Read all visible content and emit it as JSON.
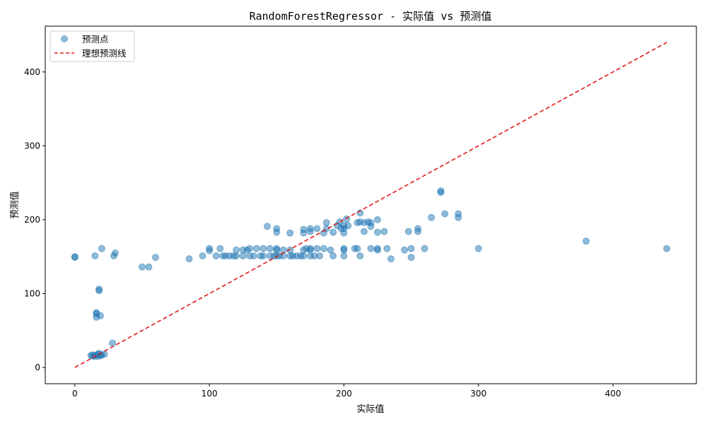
{
  "chart_data": {
    "type": "scatter",
    "title": "RandomForestRegressor - 实际值 vs 预测值",
    "xlabel": "实际值",
    "ylabel": "预测值",
    "xlim": [
      -22,
      462
    ],
    "ylim": [
      -22,
      462
    ],
    "xticks": [
      0,
      100,
      200,
      300,
      400
    ],
    "yticks": [
      0,
      100,
      200,
      300,
      400
    ],
    "grid": false,
    "legend_position": "top-left",
    "colors": {
      "points": "#1f77b4",
      "ideal_line": "#e41a1c"
    },
    "series": [
      {
        "name": "预测点",
        "kind": "scatter",
        "points": [
          [
            0,
            149
          ],
          [
            0,
            150
          ],
          [
            12,
            16
          ],
          [
            13,
            17
          ],
          [
            14,
            15
          ],
          [
            15,
            16
          ],
          [
            15,
            151
          ],
          [
            16,
            74
          ],
          [
            16,
            73
          ],
          [
            16,
            68
          ],
          [
            17,
            15
          ],
          [
            17,
            18
          ],
          [
            18,
            19
          ],
          [
            18,
            106
          ],
          [
            18,
            104
          ],
          [
            19,
            16
          ],
          [
            19,
            70
          ],
          [
            20,
            17
          ],
          [
            20,
            161
          ],
          [
            22,
            18
          ],
          [
            28,
            33
          ],
          [
            29,
            151
          ],
          [
            30,
            155
          ],
          [
            50,
            136
          ],
          [
            55,
            136
          ],
          [
            60,
            149
          ],
          [
            85,
            147
          ],
          [
            95,
            151
          ],
          [
            100,
            158
          ],
          [
            100,
            161
          ],
          [
            105,
            151
          ],
          [
            108,
            161
          ],
          [
            110,
            151
          ],
          [
            112,
            151
          ],
          [
            115,
            151
          ],
          [
            118,
            151
          ],
          [
            120,
            151
          ],
          [
            120,
            159
          ],
          [
            125,
            151
          ],
          [
            125,
            159
          ],
          [
            128,
            159
          ],
          [
            130,
            151
          ],
          [
            130,
            161
          ],
          [
            133,
            151
          ],
          [
            135,
            161
          ],
          [
            138,
            151
          ],
          [
            140,
            151
          ],
          [
            140,
            161
          ],
          [
            143,
            191
          ],
          [
            145,
            151
          ],
          [
            145,
            161
          ],
          [
            148,
            151
          ],
          [
            150,
            151
          ],
          [
            150,
            159
          ],
          [
            150,
            161
          ],
          [
            150,
            183
          ],
          [
            150,
            188
          ],
          [
            152,
            151
          ],
          [
            155,
            151
          ],
          [
            155,
            159
          ],
          [
            160,
            151
          ],
          [
            160,
            159
          ],
          [
            160,
            182
          ],
          [
            162,
            151
          ],
          [
            165,
            151
          ],
          [
            168,
            151
          ],
          [
            170,
            151
          ],
          [
            170,
            159
          ],
          [
            170,
            182
          ],
          [
            170,
            187
          ],
          [
            172,
            161
          ],
          [
            175,
            151
          ],
          [
            175,
            159
          ],
          [
            175,
            161
          ],
          [
            175,
            184
          ],
          [
            175,
            188
          ],
          [
            178,
            151
          ],
          [
            180,
            161
          ],
          [
            180,
            188
          ],
          [
            182,
            151
          ],
          [
            185,
            161
          ],
          [
            185,
            182
          ],
          [
            187,
            188
          ],
          [
            187,
            196
          ],
          [
            190,
            159
          ],
          [
            192,
            151
          ],
          [
            192,
            183
          ],
          [
            195,
            192
          ],
          [
            197,
            197
          ],
          [
            198,
            188
          ],
          [
            200,
            151
          ],
          [
            200,
            159
          ],
          [
            200,
            161
          ],
          [
            200,
            182
          ],
          [
            200,
            188
          ],
          [
            200,
            192
          ],
          [
            202,
            201
          ],
          [
            203,
            192
          ],
          [
            208,
            161
          ],
          [
            210,
            161
          ],
          [
            210,
            196
          ],
          [
            212,
            151
          ],
          [
            212,
            197
          ],
          [
            212,
            209
          ],
          [
            215,
            184
          ],
          [
            215,
            196
          ],
          [
            218,
            197
          ],
          [
            220,
            161
          ],
          [
            220,
            191
          ],
          [
            220,
            196
          ],
          [
            225,
            159
          ],
          [
            225,
            161
          ],
          [
            225,
            183
          ],
          [
            225,
            200
          ],
          [
            230,
            184
          ],
          [
            232,
            161
          ],
          [
            235,
            147
          ],
          [
            245,
            159
          ],
          [
            248,
            184
          ],
          [
            250,
            149
          ],
          [
            250,
            161
          ],
          [
            255,
            184
          ],
          [
            255,
            188
          ],
          [
            260,
            161
          ],
          [
            265,
            203
          ],
          [
            272,
            237
          ],
          [
            272,
            239
          ],
          [
            275,
            208
          ],
          [
            285,
            203
          ],
          [
            285,
            208
          ],
          [
            300,
            161
          ],
          [
            380,
            171
          ],
          [
            440,
            161
          ]
        ]
      },
      {
        "name": "理想预测线",
        "kind": "line",
        "style": "dashed",
        "x": [
          0,
          440
        ],
        "y": [
          0,
          440
        ]
      }
    ]
  }
}
